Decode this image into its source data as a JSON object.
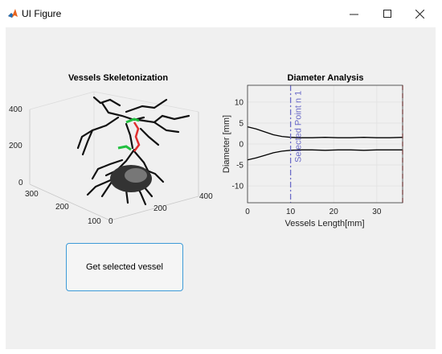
{
  "window": {
    "title": "UI Figure",
    "icon": "matlab-icon",
    "controls": [
      "minimize-icon",
      "maximize-icon",
      "close-icon"
    ]
  },
  "plot3d": {
    "title": "Vessels Skeletonization",
    "z_ticks": [
      "400",
      "200",
      "0"
    ],
    "y_ticks": [
      "300",
      "200",
      "100"
    ],
    "x_ticks": [
      "0",
      "200",
      "400"
    ]
  },
  "diameter_plot": {
    "title": "Diameter Analysis",
    "xlabel": "Vessels Length[mm]",
    "ylabel": "Diameter [mm]",
    "annotation": "Selected Point n 1",
    "colors": {
      "upper": "#000000",
      "lower": "#000000",
      "selected": "#6b6bc8",
      "end": "#e05a5a"
    }
  },
  "chart_data": {
    "type": "line",
    "title": "Diameter Analysis",
    "xlabel": "Vessels Length[mm]",
    "ylabel": "Diameter [mm]",
    "xlim": [
      0,
      36
    ],
    "ylim": [
      -14,
      14
    ],
    "x_ticks": [
      0,
      10,
      20,
      30
    ],
    "y_ticks": [
      10,
      5,
      0,
      -5,
      -10
    ],
    "grid": true,
    "x": [
      0,
      2,
      4,
      6,
      8,
      10,
      12,
      15,
      18,
      21,
      24,
      27,
      30,
      33,
      36
    ],
    "series": [
      {
        "values": [
          4.1,
          3.6,
          2.9,
          2.2,
          1.8,
          1.6,
          1.5,
          1.5,
          1.6,
          1.5,
          1.5,
          1.6,
          1.5,
          1.5,
          1.6
        ]
      },
      {
        "values": [
          -3.8,
          -3.3,
          -2.7,
          -2.1,
          -1.7,
          -1.5,
          -1.4,
          -1.4,
          -1.5,
          -1.4,
          -1.4,
          -1.5,
          -1.4,
          -1.4,
          -1.4
        ]
      }
    ],
    "vlines": [
      {
        "x": 10,
        "style": "dashdot",
        "label": "Selected Point n 1"
      },
      {
        "x": 36,
        "style": "dashed"
      }
    ]
  },
  "button": {
    "label": "Get selected vessel"
  }
}
